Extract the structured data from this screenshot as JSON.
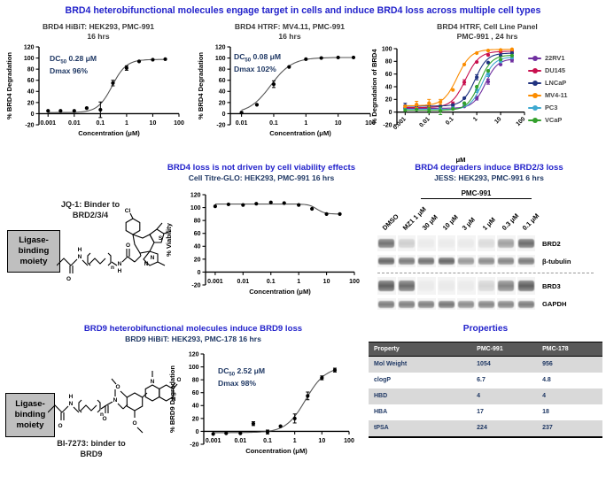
{
  "colors": {
    "section_title": "#2323CB",
    "subtitle_navy": "#1F3864",
    "table_header_bg": "#595959",
    "table_alt_row": "#D9D9D9",
    "moiety_box_bg": "#BFBFBF"
  },
  "sections": {
    "top": {
      "title": "BRD4 heterobifunctional molecules engage target in cells and induce BRD4 loss across multiple cell types"
    },
    "viability": {
      "title": "BRD4 loss is not driven by cell viability effects",
      "subtitle": "Cell Titre-GLO: HEK293, PMC-991 16 hrs"
    },
    "blot": {
      "title": "BRD4 degraders induce BRD2/3 loss",
      "subtitle": "JESS: HEK293, PMC-991 6 hrs"
    },
    "brd9": {
      "title": "BRD9 heterobifunctional molecules induce BRD9 loss",
      "subtitle": "BRD9 HiBiT: HEK293, PMC-178 16 hrs"
    },
    "properties": {
      "title": "Properties"
    }
  },
  "structures": {
    "jq1": {
      "binder_line1": "JQ-1: Binder to",
      "binder_line2": "BRD2/3/4",
      "box_lines": [
        "Ligase-",
        "binding",
        "moiety"
      ]
    },
    "bi7273": {
      "binder_line1": "BI-7273: binder to",
      "binder_line2": "BRD9",
      "box_lines": [
        "Ligase-",
        "binding",
        "moiety"
      ]
    }
  },
  "chart_data": {
    "brd4_hibit": {
      "type": "scatter",
      "title1": "BRD4 HiBiT: HEK293, PMC-991",
      "title2": "16 hrs",
      "xlabel": "Concentration (μM)",
      "ylabel": "% BRD4 Degradation",
      "ylim": [
        -20,
        120
      ],
      "yticks": [
        120,
        100,
        80,
        60,
        40,
        20,
        0,
        -20
      ],
      "xrange": [
        0.00045,
        100
      ],
      "xtick_values": [
        0.001,
        0.01,
        0.1,
        1,
        10,
        100
      ],
      "xtick_labels": [
        "0.001",
        "0.01",
        "0.1",
        "1",
        "10",
        "100"
      ],
      "rotate_xticks": false,
      "anno": {
        "dc_prefix": "DC",
        "dc_sub": "50",
        "dc_value": "0.28 μM",
        "dmax_label": "Dmax",
        "dmax_value": "96%"
      },
      "series": [
        {
          "name": "PMC-991",
          "color": "#000000",
          "line_color": "#555555",
          "points": [
            [
              0.001,
              5,
              0
            ],
            [
              0.003,
              5,
              0
            ],
            [
              0.01,
              5,
              0
            ],
            [
              0.03,
              10,
              0
            ],
            [
              0.1,
              7,
              14
            ],
            [
              0.3,
              55,
              5
            ],
            [
              1,
              82,
              4
            ],
            [
              3,
              94,
              0
            ],
            [
              10,
              97,
              0
            ],
            [
              30,
              98,
              0
            ]
          ],
          "curve": {
            "bottom": 2,
            "top": 97.5,
            "ec50": 0.28,
            "hill": 1.6
          }
        }
      ]
    },
    "brd4_htrf": {
      "type": "scatter",
      "title1": "BRD4 HTRF: MV4.11, PMC-991",
      "title2": "16 hrs",
      "xlabel": "Concentration (μM)",
      "ylabel": "% BRD4 Degradation",
      "ylim": [
        -20,
        120
      ],
      "yticks": [
        120,
        100,
        80,
        60,
        40,
        20,
        0,
        -20
      ],
      "xrange": [
        0.0045,
        100
      ],
      "xtick_values": [
        0.01,
        0.1,
        1,
        10,
        100
      ],
      "xtick_labels": [
        "0.01",
        "0.1",
        "1",
        "10",
        "100"
      ],
      "rotate_xticks": false,
      "anno": {
        "dc_prefix": "DC",
        "dc_sub": "50",
        "dc_value": "0.08 μM",
        "dmax_label": "Dmax",
        "dmax_value": "102%"
      },
      "series": [
        {
          "name": "PMC-991",
          "color": "#000000",
          "line_color": "#555555",
          "points": [
            [
              0.01,
              2,
              0
            ],
            [
              0.03,
              16,
              0
            ],
            [
              0.1,
              53,
              6
            ],
            [
              0.3,
              84,
              0
            ],
            [
              1,
              98,
              0
            ],
            [
              3,
              100,
              0
            ],
            [
              10,
              101,
              0
            ],
            [
              30,
              101,
              0
            ]
          ],
          "curve": {
            "bottom": 0,
            "top": 101,
            "ec50": 0.08,
            "hill": 1.3
          }
        }
      ]
    },
    "cell_panel": {
      "type": "scatter",
      "title1": "BRD4 HTRF, Cell Line Panel",
      "title2": "PMC-991 , 24 hrs",
      "xlabel": "μM",
      "ylabel": "% Degradation of BRD4",
      "ylim": [
        -20,
        100
      ],
      "yticks": [
        100,
        80,
        60,
        40,
        20,
        0,
        -20
      ],
      "xrange": [
        0.00045,
        100
      ],
      "xtick_values": [
        0.001,
        0.01,
        0.1,
        1,
        10,
        100
      ],
      "xtick_labels": [
        "0.001",
        "0.01",
        "0.1",
        "1",
        "10",
        "100"
      ],
      "rotate_xticks": true,
      "legend_position": "right",
      "series": [
        {
          "name": "22RV1",
          "color": "#7030A0",
          "points": [
            [
              0.001,
              6,
              0
            ],
            [
              0.003,
              6,
              0
            ],
            [
              0.01,
              6,
              0
            ],
            [
              0.03,
              6,
              0
            ],
            [
              0.1,
              7,
              0
            ],
            [
              0.3,
              9,
              0
            ],
            [
              1,
              22,
              3
            ],
            [
              3,
              48,
              4
            ],
            [
              10,
              75,
              0
            ],
            [
              30,
              82,
              3
            ]
          ],
          "curve": {
            "bottom": 6,
            "top": 84,
            "ec50": 2.3,
            "hill": 1.7
          }
        },
        {
          "name": "DU145",
          "color": "#C8104E",
          "points": [
            [
              0.001,
              7,
              0
            ],
            [
              0.003,
              7,
              3
            ],
            [
              0.01,
              8,
              0
            ],
            [
              0.03,
              9,
              0
            ],
            [
              0.1,
              13,
              3
            ],
            [
              0.3,
              47,
              4
            ],
            [
              1,
              79,
              0
            ],
            [
              3,
              90,
              0
            ],
            [
              10,
              95,
              0
            ],
            [
              30,
              96,
              0
            ]
          ],
          "curve": {
            "bottom": 7,
            "top": 96,
            "ec50": 0.34,
            "hill": 1.5
          }
        },
        {
          "name": "LNCaP",
          "color": "#203380",
          "points": [
            [
              0.001,
              10,
              4
            ],
            [
              0.003,
              10,
              0
            ],
            [
              0.01,
              9,
              0
            ],
            [
              0.03,
              9,
              0
            ],
            [
              0.1,
              11,
              0
            ],
            [
              0.3,
              22,
              0
            ],
            [
              1,
              55,
              4
            ],
            [
              3,
              78,
              0
            ],
            [
              10,
              89,
              0
            ],
            [
              30,
              93,
              0
            ]
          ],
          "curve": {
            "bottom": 9.5,
            "top": 93,
            "ec50": 0.85,
            "hill": 1.7
          }
        },
        {
          "name": "MV4-11",
          "color": "#FB8C00",
          "points": [
            [
              0.001,
              9,
              0
            ],
            [
              0.003,
              12,
              5
            ],
            [
              0.01,
              14,
              6
            ],
            [
              0.03,
              16,
              4
            ],
            [
              0.1,
              35,
              0
            ],
            [
              0.3,
              75,
              0
            ],
            [
              1,
              93,
              0
            ],
            [
              3,
              97,
              0
            ],
            [
              10,
              98,
              0
            ],
            [
              30,
              99,
              0
            ]
          ],
          "curve": {
            "bottom": 10,
            "top": 99,
            "ec50": 0.15,
            "hill": 1.5
          }
        },
        {
          "name": "PC3",
          "color": "#3FA9D0",
          "points": [
            [
              0.001,
              4,
              0
            ],
            [
              0.003,
              4,
              0
            ],
            [
              0.01,
              4,
              0
            ],
            [
              0.03,
              5,
              0
            ],
            [
              0.1,
              6,
              0
            ],
            [
              0.3,
              13,
              0
            ],
            [
              1,
              35,
              4
            ],
            [
              3,
              60,
              4
            ],
            [
              10,
              80,
              0
            ],
            [
              30,
              86,
              0
            ]
          ],
          "curve": {
            "bottom": 4,
            "top": 87,
            "ec50": 1.7,
            "hill": 1.7
          }
        },
        {
          "name": "VCaP",
          "color": "#33A02C",
          "points": [
            [
              0.001,
              3,
              0
            ],
            [
              0.003,
              4,
              0
            ],
            [
              0.01,
              3,
              4
            ],
            [
              0.03,
              2,
              6
            ],
            [
              0.1,
              5,
              0
            ],
            [
              0.3,
              14,
              0
            ],
            [
              1,
              40,
              0
            ],
            [
              3,
              65,
              0
            ],
            [
              10,
              83,
              0
            ],
            [
              30,
              89,
              0
            ]
          ],
          "curve": {
            "bottom": 3,
            "top": 90,
            "ec50": 1.3,
            "hill": 1.7
          }
        }
      ]
    },
    "viability": {
      "type": "scatter",
      "xlabel": "Concentration (μM)",
      "ylabel": "% Viability",
      "ylim": [
        -20,
        120
      ],
      "yticks": [
        120,
        100,
        80,
        60,
        40,
        20,
        0,
        -20
      ],
      "xrange": [
        0.00045,
        100
      ],
      "xtick_values": [
        0.001,
        0.01,
        0.1,
        1,
        10,
        100
      ],
      "xtick_labels": [
        "0.001",
        "0.01",
        "0.1",
        "1",
        "10",
        "100"
      ],
      "rotate_xticks": false,
      "series": [
        {
          "name": "PMC-991",
          "color": "#000000",
          "line_color": "#555555",
          "points": [
            [
              0.001,
              102,
              0
            ],
            [
              0.003,
              105,
              0
            ],
            [
              0.01,
              104,
              0
            ],
            [
              0.03,
              106,
              0
            ],
            [
              0.1,
              108,
              0
            ],
            [
              0.3,
              107,
              0
            ],
            [
              1,
              104,
              0
            ],
            [
              3,
              98,
              0
            ],
            [
              10,
              90,
              0
            ],
            [
              30,
              90,
              0
            ]
          ],
          "curve": {
            "bottom": 90,
            "top": 105.5,
            "ec50": 4.5,
            "hill": -3
          }
        }
      ]
    },
    "brd9_hibit": {
      "type": "scatter",
      "xlabel": "Concentration (μM)",
      "ylabel": "% BRD9 Degradation",
      "ylim": [
        -20,
        120
      ],
      "yticks": [
        120,
        100,
        80,
        60,
        40,
        20,
        0,
        -20
      ],
      "xrange": [
        0.00045,
        100
      ],
      "xtick_values": [
        0.001,
        0.01,
        0.1,
        1,
        10,
        100
      ],
      "xtick_labels": [
        "0.001",
        "0.01",
        "0.1",
        "1",
        "10",
        "100"
      ],
      "rotate_xticks": false,
      "anno": {
        "dc_prefix": "DC",
        "dc_sub": "50",
        "dc_value": "2.52 μM",
        "dmax_label": "Dmax",
        "dmax_value": "98%"
      },
      "series": [
        {
          "name": "PMC-178",
          "color": "#000000",
          "line_color": "#555555",
          "points": [
            [
              0.001,
              -4,
              0
            ],
            [
              0.003,
              -3,
              0
            ],
            [
              0.01,
              -3,
              0
            ],
            [
              0.03,
              12,
              3
            ],
            [
              0.1,
              -1,
              3
            ],
            [
              0.3,
              8,
              0
            ],
            [
              1,
              20,
              7
            ],
            [
              3,
              55,
              6
            ],
            [
              10,
              83,
              3
            ],
            [
              30,
              95,
              3
            ]
          ],
          "curve": {
            "bottom": -2,
            "top": 100,
            "ec50": 2.52,
            "hill": 1.2
          }
        }
      ]
    }
  },
  "blot": {
    "bracket_label": "PMC-991",
    "bracket_span": [
      2,
      7
    ],
    "lanes": [
      "DMSO",
      "MZ1 1 μM",
      "30 μM",
      "10 μM",
      "3 μM",
      "1 μM",
      "0.3 μM",
      "0.1 μM"
    ],
    "rows": [
      {
        "label": "BRD2",
        "height": 18,
        "band_height": 10,
        "divider_before": false,
        "intensities": [
          0.78,
          0.22,
          0.05,
          0.05,
          0.06,
          0.14,
          0.5,
          0.82
        ]
      },
      {
        "label": "β-tubulin",
        "height": 14,
        "band_height": 8,
        "divider_before": false,
        "intensities": [
          0.85,
          0.72,
          0.78,
          0.85,
          0.55,
          0.62,
          0.66,
          0.72
        ]
      },
      {
        "label": "BRD3",
        "height": 20,
        "band_height": 12,
        "divider_before": true,
        "intensities": [
          0.9,
          0.82,
          0.05,
          0.06,
          0.05,
          0.18,
          0.68,
          0.9
        ]
      },
      {
        "label": "GAPDH",
        "height": 13,
        "band_height": 8,
        "divider_before": false,
        "intensities": [
          0.72,
          0.7,
          0.7,
          0.76,
          0.62,
          0.66,
          0.66,
          0.72
        ]
      }
    ]
  },
  "properties_table": {
    "headers": [
      "Property",
      "PMC-991",
      "PMC-178"
    ],
    "rows": [
      [
        "Mol Weight",
        "1054",
        "956"
      ],
      [
        "clogP",
        "6.7",
        "4.8"
      ],
      [
        "HBD",
        "4",
        "4"
      ],
      [
        "HBA",
        "17",
        "18"
      ],
      [
        "tPSA",
        "224",
        "237"
      ]
    ]
  }
}
